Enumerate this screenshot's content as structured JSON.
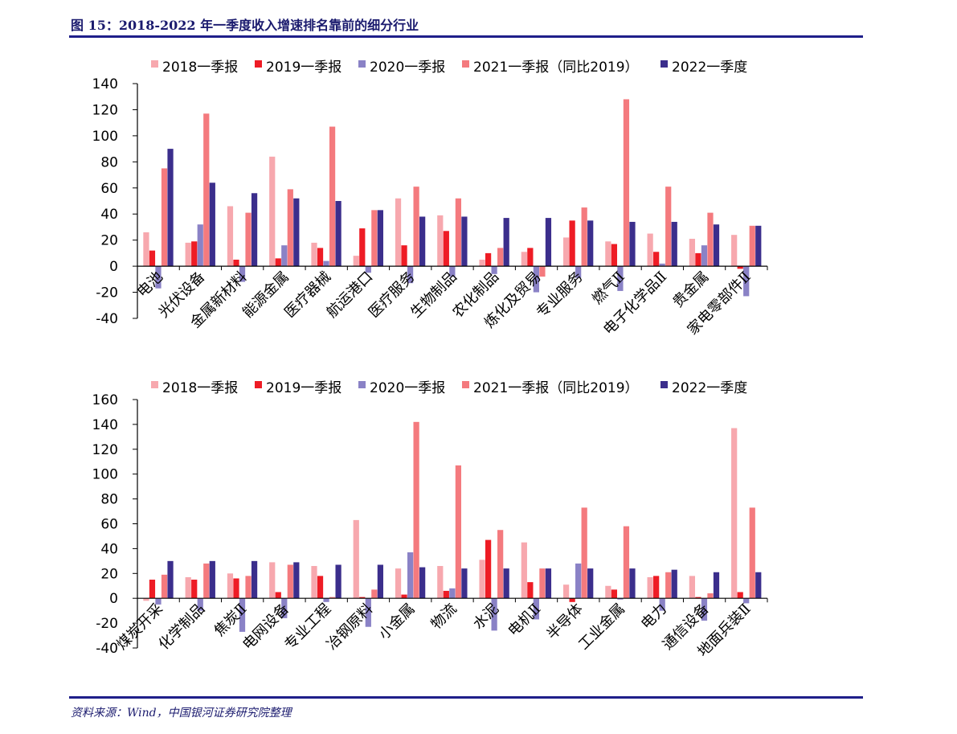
{
  "title": "图 15：2018-2022 年一季度收入增速排名靠前的细分行业",
  "source": "资料来源：Wind，中国银河证券研究院整理",
  "colors": [
    "#f7a8ae",
    "#ee1c25",
    "#8a82c6",
    "#f47a7e",
    "#3b2e8c"
  ],
  "chart_data": [
    {
      "type": "bar",
      "ylim": [
        -40,
        140
      ],
      "yticks": [
        140,
        120,
        100,
        80,
        60,
        40,
        20,
        0,
        -20,
        -40
      ],
      "legend": "top",
      "categories": [
        "电池",
        "光伏设备",
        "金属新材料",
        "能源金属",
        "医疗器械",
        "航运港口",
        "医疗服务",
        "生物制品",
        "农化制品",
        "炼化及贸易",
        "专业服务",
        "燃气Ⅱ",
        "电子化学品Ⅱ",
        "贵金属",
        "家电零部件Ⅱ"
      ],
      "series": [
        {
          "name": "2018一季报",
          "values": [
            26,
            18,
            46,
            84,
            18,
            8,
            52,
            39,
            5,
            11,
            22,
            19,
            25,
            21,
            24
          ]
        },
        {
          "name": "2019一季报",
          "values": [
            12,
            19,
            5,
            6,
            14,
            29,
            16,
            27,
            10,
            14,
            35,
            17,
            11,
            10,
            -2
          ]
        },
        {
          "name": "2020一季报",
          "values": [
            -17,
            32,
            -12,
            16,
            4,
            -5,
            -13,
            -8,
            -6,
            -20,
            -9,
            -19,
            2,
            16,
            -23
          ]
        },
        {
          "name": "2021一季报（同比2019）",
          "values": [
            75,
            117,
            41,
            59,
            107,
            43,
            61,
            52,
            14,
            -8,
            45,
            128,
            61,
            41,
            31
          ]
        },
        {
          "name": "2022一季度",
          "values": [
            90,
            64,
            56,
            52,
            50,
            43,
            38,
            38,
            37,
            37,
            35,
            34,
            34,
            32,
            31
          ]
        }
      ]
    },
    {
      "type": "bar",
      "ylim": [
        -40,
        160
      ],
      "yticks": [
        160,
        140,
        120,
        100,
        80,
        60,
        40,
        20,
        0,
        -20,
        -40
      ],
      "legend": "top",
      "categories": [
        "煤炭开采",
        "化学制品",
        "焦炭Ⅱ",
        "电网设备",
        "专业工程",
        "冶钢原料",
        "小金属",
        "物流",
        "水泥",
        "电机Ⅱ",
        "半导体",
        "工业金属",
        "电力",
        "通信设备",
        "地面兵装Ⅱ"
      ],
      "series": [
        {
          "name": "2018一季报",
          "values": [
            -2,
            17,
            20,
            29,
            26,
            63,
            24,
            26,
            31,
            45,
            11,
            10,
            17,
            18,
            137
          ]
        },
        {
          "name": "2019一季报",
          "values": [
            15,
            15,
            16,
            5,
            18,
            1,
            3,
            6,
            47,
            13,
            -3,
            7,
            18,
            1,
            5
          ]
        },
        {
          "name": "2020一季报",
          "values": [
            -5,
            -10,
            -27,
            -16,
            -3,
            -23,
            37,
            8,
            -26,
            -17,
            28,
            -1,
            -10,
            -18,
            -4
          ]
        },
        {
          "name": "2021一季报（同比2019）",
          "values": [
            19,
            28,
            18,
            27,
            1,
            7,
            142,
            107,
            55,
            24,
            73,
            58,
            21,
            4,
            73
          ]
        },
        {
          "name": "2022一季度",
          "values": [
            30,
            30,
            30,
            29,
            27,
            27,
            25,
            24,
            24,
            24,
            24,
            24,
            23,
            21,
            21
          ]
        }
      ]
    }
  ]
}
